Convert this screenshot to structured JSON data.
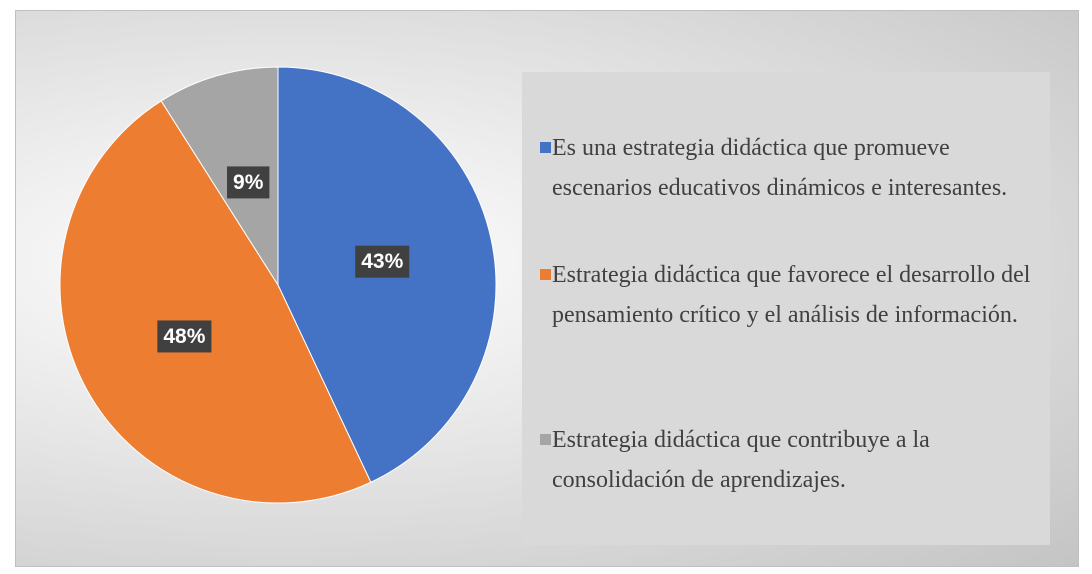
{
  "chart_data": {
    "type": "pie",
    "categories": [
      "Es una estrategia didáctica que promueve escenarios educativos dinámicos e interesantes.",
      "Estrategia didáctica que favorece el desarrollo del pensamiento crítico y el análisis de información.",
      "Estrategia didáctica que contribuye a la consolidación de aprendizajes."
    ],
    "values": [
      43,
      48,
      9
    ],
    "value_labels": [
      "43%",
      "48%",
      "9%"
    ],
    "colors": [
      "#4472c4",
      "#ed7d31",
      "#a5a5a5"
    ],
    "legend": "right"
  }
}
